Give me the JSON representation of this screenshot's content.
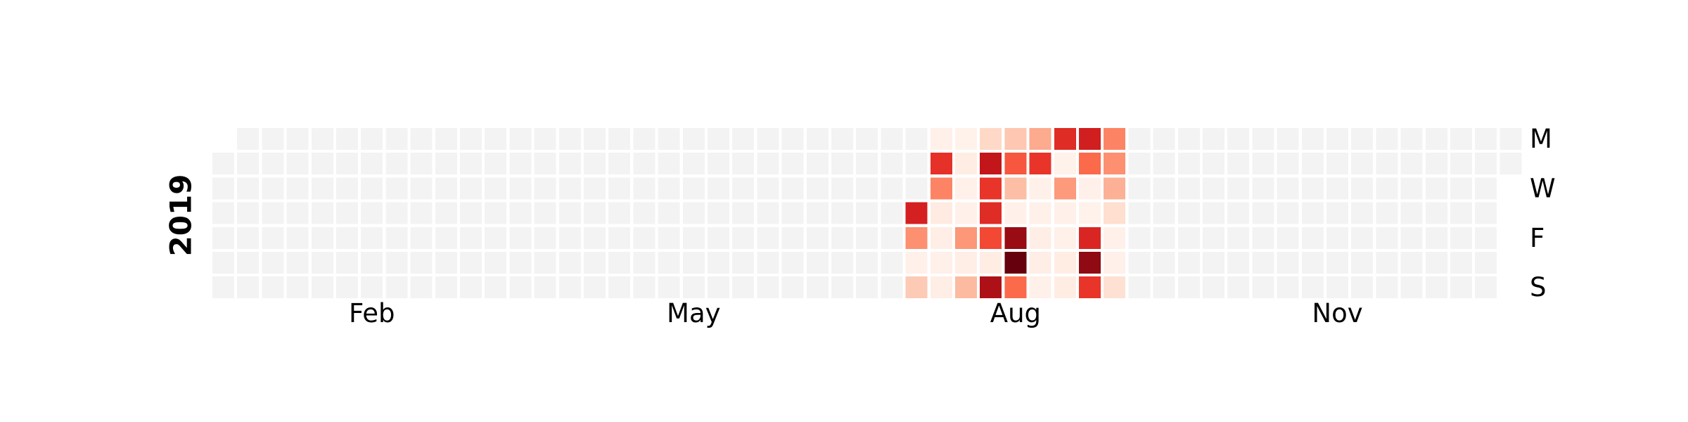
{
  "chart_data": {
    "type": "heatmap",
    "title": "",
    "year": "2019",
    "weekday_labels": [
      {
        "day": 0,
        "label": "M"
      },
      {
        "day": 2,
        "label": "W"
      },
      {
        "day": 4,
        "label": "F"
      },
      {
        "day": 6,
        "label": "S"
      }
    ],
    "month_labels": [
      {
        "week": 6,
        "label": "Feb"
      },
      {
        "week": 19,
        "label": "May"
      },
      {
        "week": 32,
        "label": "Aug"
      },
      {
        "week": 45,
        "label": "Nov"
      }
    ],
    "start_weekday": 1,
    "num_days": 365,
    "empty_color": "#f3f3f3",
    "colormap": "Reds",
    "colormap_stops": [
      "#fff5f0",
      "#fee0d2",
      "#fcbba1",
      "#fc9272",
      "#fb6a4a",
      "#ef3b2c",
      "#cb181d",
      "#a50f15",
      "#67000d"
    ],
    "value_range": [
      0,
      1
    ],
    "active_weeks": [
      {
        "week": 28,
        "days": [
          null,
          null,
          null,
          0.72,
          0.38,
          0.03,
          0.2
        ]
      },
      {
        "week": 29,
        "days": [
          0.03,
          0.66,
          0.42,
          0.06,
          0.04,
          0.03,
          0.04
        ]
      },
      {
        "week": 30,
        "days": [
          0.02,
          0.05,
          0.03,
          0.03,
          0.36,
          0.04,
          0.25
        ]
      },
      {
        "week": 31,
        "days": [
          0.15,
          0.78,
          0.65,
          0.68,
          0.59,
          0.05,
          0.85
        ]
      },
      {
        "week": 32,
        "days": [
          0.21,
          0.55,
          0.24,
          0.03,
          0.9,
          1.0,
          0.5
        ]
      },
      {
        "week": 33,
        "days": [
          0.3,
          0.65,
          0.03,
          0.03,
          0.04,
          0.04,
          0.03
        ]
      },
      {
        "week": 34,
        "days": [
          0.68,
          0.02,
          0.35,
          0.03,
          0.03,
          0.05,
          0.05
        ]
      },
      {
        "week": 35,
        "days": [
          0.73,
          0.5,
          0.03,
          0.02,
          0.7,
          0.92,
          0.65
        ]
      },
      {
        "week": 36,
        "days": [
          0.42,
          0.38,
          0.28,
          0.13,
          0.03,
          0.03,
          0.12
        ]
      }
    ]
  }
}
